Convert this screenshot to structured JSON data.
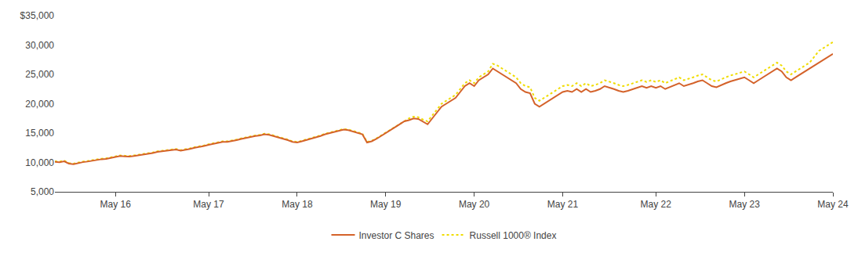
{
  "chart_data": {
    "type": "line",
    "categories": [
      null,
      null,
      null,
      null,
      null,
      null,
      null,
      null,
      null,
      null,
      null,
      null,
      null,
      "May 16",
      null,
      null,
      null,
      null,
      null,
      null,
      null,
      null,
      null,
      null,
      null,
      null,
      null,
      null,
      null,
      null,
      null,
      null,
      null,
      "May 17",
      null,
      null,
      null,
      null,
      null,
      null,
      null,
      null,
      null,
      null,
      null,
      null,
      null,
      null,
      null,
      null,
      null,
      null,
      "May 18",
      null,
      null,
      null,
      null,
      null,
      null,
      null,
      null,
      null,
      null,
      null,
      null,
      null,
      null,
      null,
      null,
      null,
      null,
      "May 19",
      null,
      null,
      null,
      null,
      null,
      null,
      null,
      null,
      null,
      null,
      null,
      null,
      null,
      null,
      null,
      null,
      null,
      null,
      "May 20",
      null,
      null,
      null,
      null,
      null,
      null,
      null,
      null,
      null,
      null,
      null,
      null,
      null,
      null,
      null,
      null,
      null,
      null,
      "May 21",
      null,
      null,
      null,
      null,
      null,
      null,
      null,
      null,
      null,
      null,
      null,
      null,
      null,
      null,
      null,
      null,
      null,
      null,
      null,
      "May 22",
      null,
      null,
      null,
      null,
      null,
      null,
      null,
      null,
      null,
      null,
      null,
      null,
      null,
      null,
      null,
      null,
      null,
      null,
      "May 23",
      null,
      null,
      null,
      null,
      null,
      null,
      null,
      null,
      null,
      null,
      null,
      null,
      null,
      null,
      null,
      null,
      null,
      null,
      "May 24"
    ],
    "series": [
      {
        "name": "Russell 1000® Index",
        "color": "#F0DC00",
        "line_style": "dotted",
        "values": [
          10200,
          10150,
          10300,
          9900,
          9800,
          10000,
          10150,
          10250,
          10400,
          10600,
          10650,
          10700,
          10900,
          11100,
          11200,
          11150,
          11100,
          11200,
          11300,
          11400,
          11600,
          11700,
          11900,
          12000,
          12100,
          12200,
          12300,
          12100,
          12200,
          12400,
          12600,
          12700,
          12900,
          13100,
          13300,
          13400,
          13600,
          13600,
          13700,
          13900,
          14100,
          14300,
          14400,
          14600,
          14700,
          14900,
          14800,
          14600,
          14300,
          14100,
          13900,
          13600,
          13500,
          13700,
          13900,
          14100,
          14300,
          14600,
          14900,
          15100,
          15300,
          15600,
          15700,
          15600,
          15400,
          15100,
          14900,
          13500,
          13700,
          14100,
          14600,
          15100,
          15600,
          16100,
          16600,
          17100,
          17500,
          17800,
          17700,
          17300,
          17000,
          18000,
          19000,
          20000,
          20500,
          21000,
          21500,
          22500,
          23500,
          24000,
          23500,
          24500,
          25000,
          25500,
          26800,
          26500,
          26000,
          25500,
          25000,
          24500,
          23500,
          23000,
          22800,
          21000,
          20500,
          21000,
          21500,
          22000,
          22500,
          23000,
          23200,
          23000,
          23500,
          23000,
          23500,
          23000,
          23200,
          23500,
          24000,
          23800,
          23500,
          23200,
          23000,
          23200,
          23500,
          23800,
          24000,
          23700,
          24000,
          23700,
          24000,
          23500,
          23800,
          24200,
          24500,
          24000,
          24200,
          24500,
          24800,
          25000,
          24500,
          24000,
          23800,
          24200,
          24500,
          24800,
          25000,
          25200,
          25500,
          25000,
          24500,
          25000,
          25500,
          26000,
          26500,
          27000,
          26500,
          25500,
          25000,
          25500,
          26000,
          26500,
          27000,
          28000,
          29000,
          29500,
          30000,
          30500
        ]
      },
      {
        "name": "Investor C Shares",
        "color": "#D4622A",
        "line_style": "solid",
        "values": [
          10100,
          10050,
          10200,
          9800,
          9700,
          9900,
          10050,
          10150,
          10300,
          10500,
          10550,
          10600,
          10800,
          11000,
          11100,
          11050,
          11000,
          11100,
          11200,
          11300,
          11500,
          11600,
          11800,
          11900,
          12000,
          12100,
          12200,
          12000,
          12100,
          12300,
          12500,
          12600,
          12800,
          13000,
          13200,
          13300,
          13500,
          13500,
          13600,
          13800,
          14000,
          14200,
          14300,
          14500,
          14600,
          14800,
          14700,
          14500,
          14200,
          14000,
          13800,
          13500,
          13400,
          13600,
          13800,
          14000,
          14200,
          14500,
          14800,
          15000,
          15200,
          15500,
          15600,
          15500,
          15300,
          15000,
          14800,
          13400,
          13600,
          14000,
          14500,
          15000,
          15500,
          16000,
          16500,
          17000,
          17200,
          17500,
          17400,
          17000,
          16500,
          17500,
          18500,
          19500,
          20000,
          20500,
          21000,
          22000,
          23000,
          23500,
          23000,
          24000,
          24500,
          25000,
          26000,
          25500,
          25000,
          24500,
          24000,
          23500,
          22500,
          22000,
          21800,
          20000,
          19500,
          20000,
          20500,
          21000,
          21500,
          22000,
          22200,
          22000,
          22500,
          22000,
          22500,
          22000,
          22200,
          22500,
          23000,
          22800,
          22500,
          22200,
          22000,
          22200,
          22500,
          22800,
          23000,
          22700,
          23000,
          22700,
          23000,
          22500,
          22800,
          23200,
          23500,
          23000,
          23200,
          23500,
          23800,
          24000,
          23500,
          23000,
          22800,
          23200,
          23500,
          23800,
          24000,
          24200,
          24500,
          24000,
          23500,
          24000,
          24500,
          25000,
          25500,
          26000,
          25500,
          24500,
          24000,
          24500,
          25000,
          25500,
          26000,
          26500,
          27000,
          27500,
          28000,
          28500
        ]
      }
    ],
    "ylim": [
      5000,
      35000
    ],
    "yticks": [
      {
        "value": 5000,
        "label": "5,000"
      },
      {
        "value": 10000,
        "label": "10,000"
      },
      {
        "value": 15000,
        "label": "15,000"
      },
      {
        "value": 20000,
        "label": "20,000"
      },
      {
        "value": 25000,
        "label": "25,000"
      },
      {
        "value": 30000,
        "label": "30,000"
      },
      {
        "value": 35000,
        "label": "$35,000"
      }
    ],
    "grid": false,
    "legend": "bottom"
  }
}
